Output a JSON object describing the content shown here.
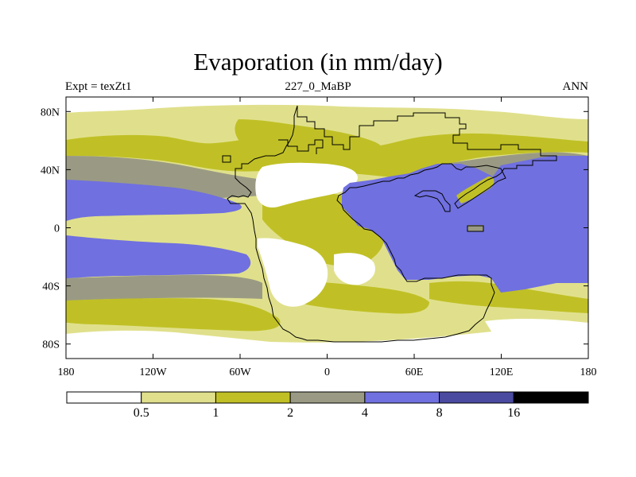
{
  "title": "Evaporation (in mm/day)",
  "left_string": "Expt = texZt1",
  "center_string": "227_0_MaBP",
  "right_string": "ANN",
  "chart_data": {
    "type": "contour-map",
    "title": "Evaporation (in mm/day)",
    "units": "mm/day",
    "experiment": "texZt1",
    "time_slice": "227_0_MaBP",
    "season": "ANN",
    "projection": "cylindrical-equidistant",
    "lon_range": [
      -180,
      180
    ],
    "lat_range": [
      -90,
      90
    ],
    "x_ticks": [
      {
        "value": -180,
        "label": "180"
      },
      {
        "value": -120,
        "label": "120W"
      },
      {
        "value": -60,
        "label": "60W"
      },
      {
        "value": 0,
        "label": "0"
      },
      {
        "value": 60,
        "label": "60E"
      },
      {
        "value": 120,
        "label": "120E"
      },
      {
        "value": 180,
        "label": "180"
      }
    ],
    "y_ticks": [
      {
        "value": 80,
        "label": "80N"
      },
      {
        "value": 40,
        "label": "40N"
      },
      {
        "value": 0,
        "label": "0"
      },
      {
        "value": -40,
        "label": "40S"
      },
      {
        "value": -80,
        "label": "80S"
      }
    ],
    "contour_levels": [
      0.5,
      1,
      2,
      4,
      8,
      16
    ],
    "colorbar": {
      "orientation": "horizontal",
      "labels": [
        "0.5",
        "1",
        "2",
        "4",
        "8",
        "16"
      ],
      "colors": [
        "#ffffff",
        "#e0e08c",
        "#c0c026",
        "#9a9a84",
        "#7070e0",
        "#4a4aa0",
        "#000000"
      ]
    },
    "land_outline_color": "#000000"
  }
}
